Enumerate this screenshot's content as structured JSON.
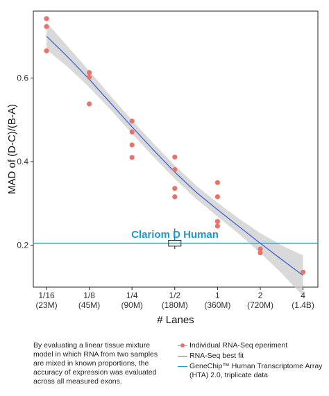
{
  "chart_data": {
    "type": "scatter",
    "xlabel": "# Lanes",
    "ylabel": "MAD of (D-C)/(B-A)",
    "categories": [
      {
        "top": "1/16",
        "bottom": "(23M)"
      },
      {
        "top": "1/8",
        "bottom": "(45M)"
      },
      {
        "top": "1/4",
        "bottom": "(90M)"
      },
      {
        "top": "1/2",
        "bottom": "(180M)"
      },
      {
        "top": "1",
        "bottom": "(360M)"
      },
      {
        "top": "2",
        "bottom": "(720M)"
      },
      {
        "top": "4",
        "bottom": "(1.4B)"
      }
    ],
    "ylim": [
      0.1,
      0.76
    ],
    "yticks": [
      0.2,
      0.4,
      0.6
    ],
    "ytick_labels": [
      "0.2",
      "0.4",
      "0.6"
    ],
    "series": [
      {
        "name": "Individual RNA-Seq eperiment",
        "color": "#e8736a",
        "points": [
          {
            "x": 0,
            "y": 0.742
          },
          {
            "x": 0,
            "y": 0.723
          },
          {
            "x": 0,
            "y": 0.665
          },
          {
            "x": 1,
            "y": 0.613
          },
          {
            "x": 1,
            "y": 0.602
          },
          {
            "x": 1,
            "y": 0.538
          },
          {
            "x": 2,
            "y": 0.497
          },
          {
            "x": 2,
            "y": 0.471
          },
          {
            "x": 2,
            "y": 0.44
          },
          {
            "x": 2,
            "y": 0.41
          },
          {
            "x": 3,
            "y": 0.411
          },
          {
            "x": 3,
            "y": 0.381
          },
          {
            "x": 3,
            "y": 0.336
          },
          {
            "x": 3,
            "y": 0.316
          },
          {
            "x": 4,
            "y": 0.35
          },
          {
            "x": 4,
            "y": 0.316
          },
          {
            "x": 4,
            "y": 0.257
          },
          {
            "x": 4,
            "y": 0.246
          },
          {
            "x": 5,
            "y": 0.191
          },
          {
            "x": 5,
            "y": 0.182
          },
          {
            "x": 6,
            "y": 0.136
          }
        ]
      }
    ],
    "fit": {
      "name": "RNA-Seq best fit",
      "color": "#3f62d8",
      "band_color": "#cccccc",
      "points": [
        {
          "x": 0,
          "y": 0.7,
          "lo": 0.668,
          "hi": 0.733
        },
        {
          "x": 0.5,
          "y": 0.65,
          "lo": 0.626,
          "hi": 0.675
        },
        {
          "x": 1,
          "y": 0.597,
          "lo": 0.578,
          "hi": 0.617
        },
        {
          "x": 1.5,
          "y": 0.54,
          "lo": 0.524,
          "hi": 0.557
        },
        {
          "x": 2,
          "y": 0.483,
          "lo": 0.467,
          "hi": 0.499
        },
        {
          "x": 2.5,
          "y": 0.428,
          "lo": 0.412,
          "hi": 0.444
        },
        {
          "x": 3,
          "y": 0.375,
          "lo": 0.359,
          "hi": 0.391
        },
        {
          "x": 3.5,
          "y": 0.327,
          "lo": 0.311,
          "hi": 0.343
        },
        {
          "x": 4,
          "y": 0.285,
          "lo": 0.269,
          "hi": 0.302
        },
        {
          "x": 4.5,
          "y": 0.245,
          "lo": 0.227,
          "hi": 0.264
        },
        {
          "x": 5,
          "y": 0.205,
          "lo": 0.182,
          "hi": 0.229
        },
        {
          "x": 5.5,
          "y": 0.166,
          "lo": 0.133,
          "hi": 0.2
        },
        {
          "x": 6,
          "y": 0.128,
          "lo": 0.079,
          "hi": 0.176
        }
      ]
    },
    "reference": {
      "name": "GeneChip™ Human Transcriptome Array (HTA) 2.0, triplicate data",
      "label": "Clariom D Human",
      "color": "#1a9ad1",
      "value": 0.205,
      "box": {
        "x": 3,
        "q1": 0.198,
        "median": 0.205,
        "q3": 0.212,
        "min": 0.191,
        "max": 0.24
      }
    },
    "grid": false
  },
  "caption": "By evaluating a linear tissue mixture model in which RNA from two samples are mixed in known proportions, the accuracy of expression was evaluated across all measured exons.",
  "legend": [
    {
      "kind": "dot",
      "label": "Individual RNA-Seq eperiment"
    },
    {
      "kind": "line",
      "label": "RNA-Seq best fit"
    },
    {
      "kind": "hline",
      "label": "GeneChip™ Human Transcriptome Array (HTA) 2.0, triplicate data"
    }
  ]
}
